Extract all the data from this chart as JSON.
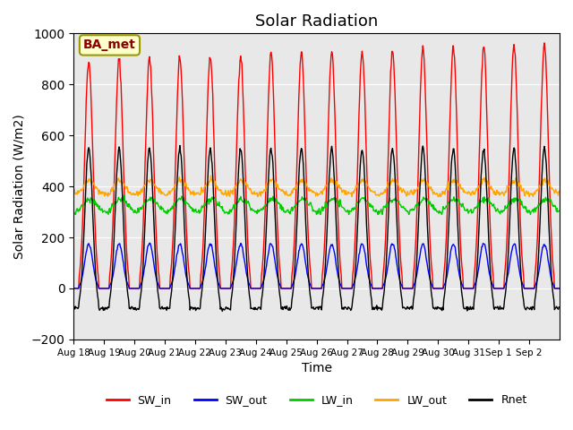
{
  "title": "Solar Radiation",
  "xlabel": "Time",
  "ylabel": "Solar Radiation (W/m2)",
  "annotation": "BA_met",
  "ylim": [
    -200,
    1000
  ],
  "yticks": [
    -200,
    0,
    200,
    400,
    600,
    800,
    1000
  ],
  "n_days": 16,
  "series": {
    "SW_in": {
      "color": "#ff0000"
    },
    "SW_out": {
      "color": "#0000ff"
    },
    "LW_in": {
      "color": "#00cc00"
    },
    "LW_out": {
      "color": "#ffa500"
    },
    "Rnet": {
      "color": "#000000"
    }
  },
  "bg_color": "#e8e8e8",
  "figsize": [
    6.4,
    4.8
  ],
  "dpi": 100,
  "xtick_labels": [
    "Aug 18",
    "Aug 19",
    "Aug 20",
    "Aug 21",
    "Aug 22",
    "Aug 23",
    "Aug 24",
    "Aug 25",
    "Aug 26",
    "Aug 27",
    "Aug 28",
    "Aug 29",
    "Aug 30",
    "Aug 31",
    "Sep 1",
    "Sep 2"
  ],
  "line_width": 1.0
}
